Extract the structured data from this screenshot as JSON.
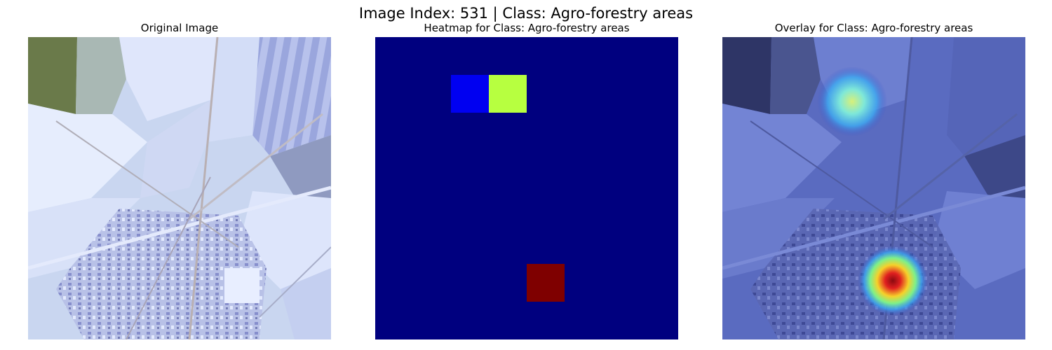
{
  "figure": {
    "title": "Image Index: 531 | Class: Agro-forestry areas"
  },
  "panels": {
    "original": {
      "title": "Original Image"
    },
    "heatmap": {
      "title": "Heatmap for Class: Agro-forestry areas"
    },
    "overlay": {
      "title": "Overlay for Class: Agro-forestry areas"
    }
  },
  "heatmap_grid": {
    "size": 8,
    "colormap": "jet",
    "background": "#00007f",
    "cells": [
      {
        "row": 1,
        "col": 2,
        "color": "#0000f1"
      },
      {
        "row": 1,
        "col": 3,
        "color": "#b7ff40"
      },
      {
        "row": 6,
        "col": 4,
        "color": "#7f0000"
      }
    ]
  },
  "colors": {
    "overlay_tint": "#3a52c8",
    "satellite_base": "#c9d6f0"
  }
}
